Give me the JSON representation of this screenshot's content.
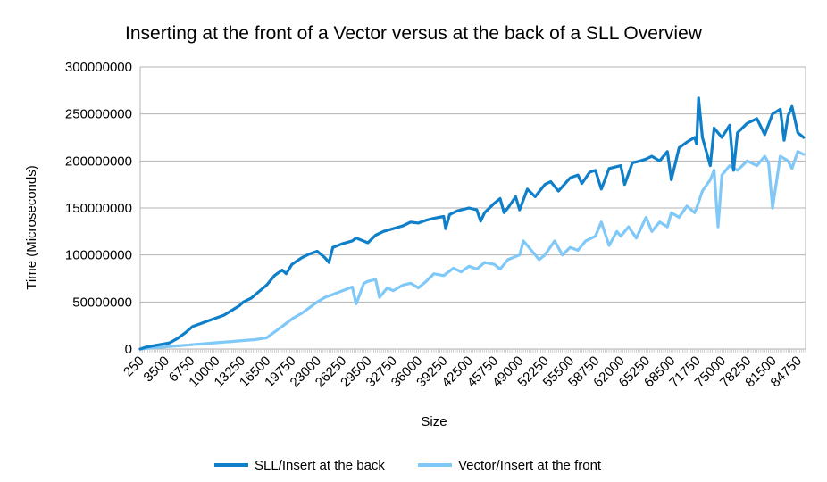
{
  "chart_data": {
    "type": "line",
    "title": "Inserting at the front of a Vector versus at the back of a SLL Overview",
    "xlabel": "Size",
    "ylabel": "Time (Microseconds)",
    "ylim": [
      0,
      300000000
    ],
    "yticks": [
      "0",
      "50000000",
      "100000000",
      "150000000",
      "200000000",
      "250000000",
      "300000000"
    ],
    "xlim": [
      250,
      85750
    ],
    "xticks": [
      "250",
      "3500",
      "6750",
      "10000",
      "13250",
      "16500",
      "19750",
      "23000",
      "26250",
      "29500",
      "32750",
      "36000",
      "39250",
      "42500",
      "45750",
      "49000",
      "52250",
      "55500",
      "58750",
      "62000",
      "65250",
      "68500",
      "71750",
      "75000",
      "78250",
      "81500",
      "84750"
    ],
    "grid": true,
    "legend": "bottom",
    "series": [
      {
        "name": "SLL/Insert at the back",
        "color": "#0e7fc8",
        "points": [
          [
            250,
            0
          ],
          [
            1000,
            2000000
          ],
          [
            2000,
            3500000
          ],
          [
            3000,
            5000000
          ],
          [
            4000,
            6500000
          ],
          [
            5000,
            11000000
          ],
          [
            6000,
            17000000
          ],
          [
            7000,
            24000000
          ],
          [
            8000,
            27000000
          ],
          [
            9000,
            30000000
          ],
          [
            10000,
            33000000
          ],
          [
            11000,
            36000000
          ],
          [
            12000,
            41000000
          ],
          [
            13000,
            46000000
          ],
          [
            13500,
            50000000
          ],
          [
            14500,
            54000000
          ],
          [
            15500,
            61000000
          ],
          [
            16500,
            68000000
          ],
          [
            17500,
            78000000
          ],
          [
            18500,
            84000000
          ],
          [
            19000,
            80000000
          ],
          [
            19750,
            90000000
          ],
          [
            21000,
            97000000
          ],
          [
            22000,
            101000000
          ],
          [
            23000,
            104000000
          ],
          [
            24000,
            97000000
          ],
          [
            24500,
            92000000
          ],
          [
            25000,
            108000000
          ],
          [
            26250,
            112000000
          ],
          [
            27500,
            115000000
          ],
          [
            28000,
            118000000
          ],
          [
            29500,
            113000000
          ],
          [
            30500,
            121000000
          ],
          [
            31500,
            125000000
          ],
          [
            32750,
            128000000
          ],
          [
            34000,
            131000000
          ],
          [
            35000,
            135000000
          ],
          [
            36000,
            134000000
          ],
          [
            37000,
            137000000
          ],
          [
            38000,
            139000000
          ],
          [
            39250,
            141000000
          ],
          [
            39500,
            128000000
          ],
          [
            40000,
            143000000
          ],
          [
            41000,
            147000000
          ],
          [
            42500,
            150000000
          ],
          [
            43500,
            148000000
          ],
          [
            44000,
            136000000
          ],
          [
            44500,
            145000000
          ],
          [
            45750,
            155000000
          ],
          [
            46500,
            160000000
          ],
          [
            47000,
            145000000
          ],
          [
            47500,
            150000000
          ],
          [
            48500,
            162000000
          ],
          [
            49000,
            148000000
          ],
          [
            50000,
            170000000
          ],
          [
            51000,
            162000000
          ],
          [
            52250,
            175000000
          ],
          [
            53000,
            178000000
          ],
          [
            54000,
            168000000
          ],
          [
            55500,
            182000000
          ],
          [
            56500,
            185000000
          ],
          [
            57000,
            176000000
          ],
          [
            58000,
            188000000
          ],
          [
            58750,
            190000000
          ],
          [
            59500,
            170000000
          ],
          [
            60500,
            192000000
          ],
          [
            62000,
            195000000
          ],
          [
            62500,
            175000000
          ],
          [
            63500,
            198000000
          ],
          [
            64500,
            200000000
          ],
          [
            65250,
            202000000
          ],
          [
            66000,
            205000000
          ],
          [
            67000,
            200000000
          ],
          [
            68000,
            210000000
          ],
          [
            68500,
            180000000
          ],
          [
            69500,
            214000000
          ],
          [
            70500,
            220000000
          ],
          [
            71500,
            225000000
          ],
          [
            71750,
            218000000
          ],
          [
            72000,
            267000000
          ],
          [
            72500,
            225000000
          ],
          [
            73500,
            195000000
          ],
          [
            74000,
            235000000
          ],
          [
            75000,
            225000000
          ],
          [
            76000,
            238000000
          ],
          [
            76500,
            190000000
          ],
          [
            77000,
            230000000
          ],
          [
            78250,
            240000000
          ],
          [
            79500,
            245000000
          ],
          [
            80500,
            228000000
          ],
          [
            81500,
            250000000
          ],
          [
            82500,
            255000000
          ],
          [
            83000,
            222000000
          ],
          [
            83500,
            248000000
          ],
          [
            84000,
            258000000
          ],
          [
            84750,
            230000000
          ],
          [
            85500,
            225000000
          ]
        ]
      },
      {
        "name": "Vector/Insert at the front",
        "color": "#7fc8f8",
        "points": [
          [
            250,
            0
          ],
          [
            1500,
            1000000
          ],
          [
            3000,
            2000000
          ],
          [
            4500,
            3000000
          ],
          [
            6000,
            4000000
          ],
          [
            7500,
            5000000
          ],
          [
            9000,
            6000000
          ],
          [
            10500,
            7000000
          ],
          [
            12000,
            8000000
          ],
          [
            13500,
            9000000
          ],
          [
            15000,
            10000000
          ],
          [
            16500,
            12000000
          ],
          [
            17500,
            18000000
          ],
          [
            18500,
            24000000
          ],
          [
            19750,
            32000000
          ],
          [
            21000,
            38000000
          ],
          [
            22000,
            44000000
          ],
          [
            23000,
            50000000
          ],
          [
            24000,
            55000000
          ],
          [
            25000,
            58000000
          ],
          [
            26250,
            62000000
          ],
          [
            27500,
            66000000
          ],
          [
            28000,
            48000000
          ],
          [
            29000,
            70000000
          ],
          [
            29500,
            72000000
          ],
          [
            30500,
            74000000
          ],
          [
            31000,
            55000000
          ],
          [
            32000,
            65000000
          ],
          [
            32750,
            62000000
          ],
          [
            34000,
            68000000
          ],
          [
            35000,
            70000000
          ],
          [
            36000,
            65000000
          ],
          [
            37000,
            72000000
          ],
          [
            38000,
            80000000
          ],
          [
            39250,
            78000000
          ],
          [
            40500,
            86000000
          ],
          [
            41500,
            82000000
          ],
          [
            42500,
            88000000
          ],
          [
            43500,
            85000000
          ],
          [
            44500,
            92000000
          ],
          [
            45750,
            90000000
          ],
          [
            46500,
            85000000
          ],
          [
            47500,
            95000000
          ],
          [
            49000,
            100000000
          ],
          [
            49500,
            115000000
          ],
          [
            50500,
            105000000
          ],
          [
            51500,
            95000000
          ],
          [
            52250,
            100000000
          ],
          [
            53500,
            115000000
          ],
          [
            54500,
            100000000
          ],
          [
            55500,
            108000000
          ],
          [
            56500,
            105000000
          ],
          [
            57500,
            115000000
          ],
          [
            58750,
            120000000
          ],
          [
            59500,
            135000000
          ],
          [
            60500,
            110000000
          ],
          [
            61500,
            125000000
          ],
          [
            62000,
            120000000
          ],
          [
            63000,
            130000000
          ],
          [
            64000,
            118000000
          ],
          [
            65250,
            140000000
          ],
          [
            66000,
            125000000
          ],
          [
            67000,
            135000000
          ],
          [
            68000,
            130000000
          ],
          [
            68500,
            145000000
          ],
          [
            69500,
            140000000
          ],
          [
            70500,
            152000000
          ],
          [
            71500,
            145000000
          ],
          [
            71750,
            150000000
          ],
          [
            72500,
            168000000
          ],
          [
            73500,
            180000000
          ],
          [
            74000,
            190000000
          ],
          [
            74500,
            130000000
          ],
          [
            75000,
            185000000
          ],
          [
            76000,
            195000000
          ],
          [
            77000,
            190000000
          ],
          [
            78250,
            200000000
          ],
          [
            79500,
            195000000
          ],
          [
            80500,
            205000000
          ],
          [
            81000,
            198000000
          ],
          [
            81500,
            150000000
          ],
          [
            82500,
            205000000
          ],
          [
            83500,
            200000000
          ],
          [
            84000,
            192000000
          ],
          [
            84750,
            210000000
          ],
          [
            85500,
            207000000
          ]
        ]
      }
    ]
  }
}
